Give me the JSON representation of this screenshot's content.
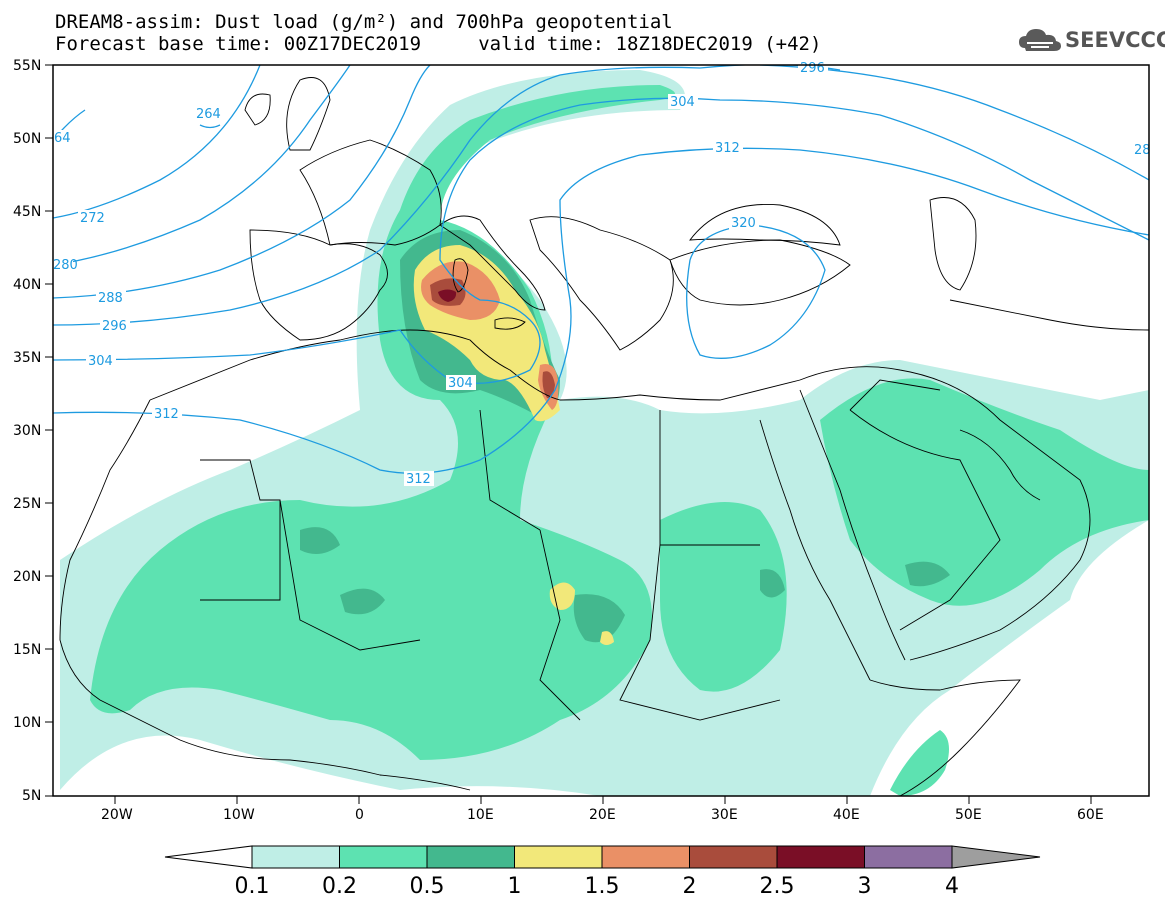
{
  "title": {
    "line1": "DREAM8-assim: Dust load (g/m²) and 700hPa geopotential",
    "line2": "Forecast base time: 00Z17DEC2019     valid time: 18Z18DEC2019 (+42)"
  },
  "logo": {
    "text": "SEEVCCC",
    "icon": "cloud-icon"
  },
  "axes": {
    "lat_labels": [
      "55N",
      "50N",
      "45N",
      "40N",
      "35N",
      "30N",
      "25N",
      "20N",
      "15N",
      "10N",
      "5N"
    ],
    "lon_labels": [
      "20W",
      "10W",
      "0",
      "10E",
      "20E",
      "30E",
      "40E",
      "50E",
      "60E"
    ]
  },
  "contour_labels": [
    "264",
    "272",
    "280",
    "288",
    "296",
    "304",
    "312",
    "304",
    "312",
    "296",
    "304",
    "312",
    "320",
    "28",
    "64"
  ],
  "colorbar": {
    "ticks": [
      "0.1",
      "0.2",
      "0.5",
      "1",
      "1.5",
      "2",
      "2.5",
      "3",
      "4"
    ],
    "colors": [
      "#ffffff",
      "#bfeee6",
      "#5de2b1",
      "#43b88e",
      "#f2e87a",
      "#ea9066",
      "#a94c3c",
      "#7a0e26",
      "#8c6ea1",
      "#9e9e9e"
    ]
  },
  "colors": {
    "contour": "#1e9be0",
    "map_lines": "#000000"
  }
}
